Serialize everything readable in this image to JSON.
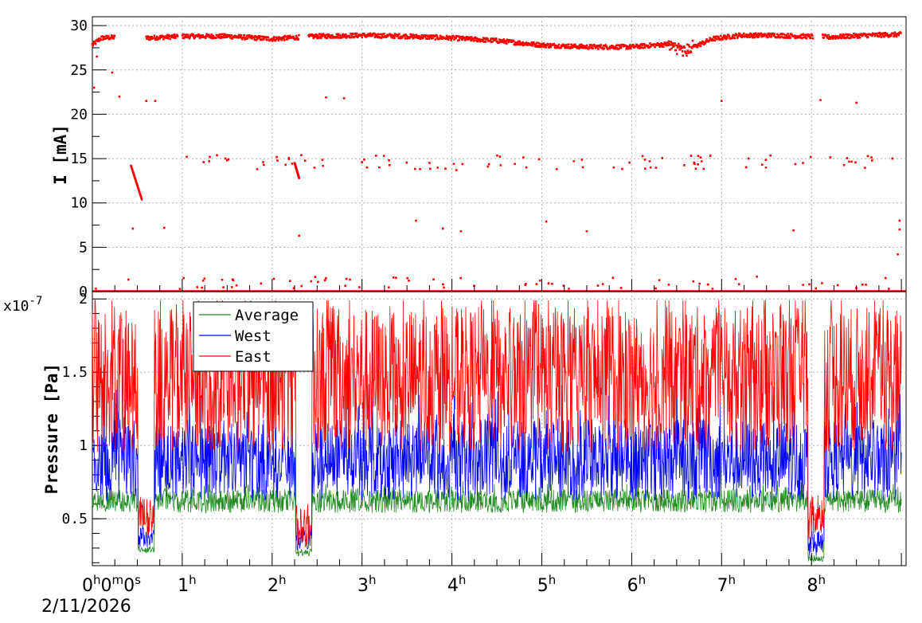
{
  "chart_data": [
    {
      "type": "scatter",
      "ylabel": "I [mA]",
      "ylim": [
        0,
        31
      ],
      "yticks": [
        "0",
        "5",
        "10",
        "15",
        "20",
        "25",
        "30"
      ],
      "xlim_hours": [
        0,
        9
      ],
      "color": "#ff0000",
      "series": [
        {
          "baseline_current_mA": [
            [
              0.0,
              27.8
            ],
            [
              0.1,
              28.6
            ],
            [
              0.3,
              28.7
            ],
            [
              0.6,
              28.6
            ],
            [
              1.0,
              28.8
            ],
            [
              1.5,
              28.8
            ],
            [
              2.0,
              28.5
            ],
            [
              2.5,
              28.8
            ],
            [
              3.0,
              28.9
            ],
            [
              3.5,
              28.8
            ],
            [
              4.0,
              28.6
            ],
            [
              4.5,
              28.3
            ],
            [
              5.0,
              27.8
            ],
            [
              5.5,
              27.6
            ],
            [
              6.0,
              27.6
            ],
            [
              6.4,
              27.9
            ],
            [
              6.6,
              27.2
            ],
            [
              6.9,
              28.5
            ],
            [
              7.2,
              28.9
            ],
            [
              7.6,
              28.9
            ],
            [
              7.9,
              28.8
            ],
            [
              8.2,
              28.7
            ],
            [
              8.6,
              28.9
            ],
            [
              9.0,
              29.0
            ]
          ],
          "scattered_points_mA": [
            [
              0.02,
              23
            ],
            [
              0.05,
              26.5
            ],
            [
              0.22,
              24.7
            ],
            [
              0.3,
              22.0
            ],
            [
              0.6,
              21.5
            ],
            [
              0.7,
              21.5
            ],
            [
              1.05,
              15.2
            ],
            [
              1.3,
              14.7
            ],
            [
              1.5,
              14.8
            ],
            [
              1.9,
              14.6
            ],
            [
              2.15,
              14.3
            ],
            [
              2.2,
              1.2
            ],
            [
              2.3,
              6.3
            ],
            [
              2.6,
              21.9
            ],
            [
              2.8,
              21.8
            ],
            [
              3.3,
              14.8
            ],
            [
              3.6,
              8.0
            ],
            [
              4.05,
              13.7
            ],
            [
              4.4,
              14.1
            ],
            [
              4.7,
              14.4
            ],
            [
              5.05,
              7.9
            ],
            [
              5.5,
              6.8
            ],
            [
              5.8,
              14.0
            ],
            [
              6.2,
              14.7
            ],
            [
              6.7,
              14.4
            ],
            [
              7.0,
              21.5
            ],
            [
              7.3,
              15.0
            ],
            [
              7.8,
              6.9
            ],
            [
              8.1,
              21.6
            ],
            [
              8.5,
              21.3
            ],
            [
              8.9,
              15.0
            ],
            [
              8.98,
              8.0
            ],
            [
              8.98,
              7.0
            ],
            [
              8.96,
              4.2
            ],
            [
              0.45,
              7.1
            ],
            [
              0.8,
              7.2
            ],
            [
              3.9,
              7.1
            ],
            [
              4.1,
              6.8
            ]
          ],
          "decay_segments_mA": [
            [
              [
                0.43,
                14.2
              ],
              [
                0.55,
                10.4
              ]
            ],
            [
              [
                2.25,
                14.5
              ],
              [
                2.3,
                12.8
              ]
            ]
          ],
          "beam_off_intervals_h": [
            [
              0.25,
              0.6
            ],
            [
              0.95,
              1.0
            ],
            [
              2.3,
              2.4
            ],
            [
              8.02,
              8.12
            ]
          ]
        }
      ]
    },
    {
      "type": "line",
      "ylabel": "Pressure [Pa]",
      "yexp": "x10",
      "yexp_power": "-7",
      "ylim": [
        0.18,
        2.05
      ],
      "yticks": [
        "0.5",
        "1",
        "1.5",
        "2"
      ],
      "xlim_hours": [
        0,
        9
      ],
      "legend_position": "top-left",
      "series": [
        {
          "name": "Average",
          "color": "#228b22",
          "base": 0.62,
          "amplitude": 0.08,
          "dips": [
            [
              0.6,
              0.28
            ],
            [
              2.35,
              0.26
            ],
            [
              8.05,
              0.22
            ]
          ]
        },
        {
          "name": "West",
          "color": "#0000ff",
          "base": 0.9,
          "amplitude": 0.28,
          "dips": [
            [
              0.6,
              0.35
            ],
            [
              2.35,
              0.33
            ],
            [
              8.05,
              0.3
            ]
          ]
        },
        {
          "name": "East",
          "color": "#ff0000",
          "base": 1.45,
          "amplitude": 0.5,
          "dips": [
            [
              0.6,
              0.45
            ],
            [
              2.35,
              0.4
            ],
            [
              8.05,
              0.45
            ]
          ]
        }
      ]
    }
  ],
  "x_axis": {
    "tick_labels": [
      {
        "hour": 0,
        "h": "0",
        "m": "0",
        "s": "0"
      },
      {
        "hour": 1,
        "h": "1"
      },
      {
        "hour": 2,
        "h": "2"
      },
      {
        "hour": 3,
        "h": "3"
      },
      {
        "hour": 4,
        "h": "4"
      },
      {
        "hour": 5,
        "h": "5"
      },
      {
        "hour": 6,
        "h": "6"
      },
      {
        "hour": 7,
        "h": "7"
      },
      {
        "hour": 8,
        "h": "8"
      }
    ],
    "superscript_h": "h",
    "superscript_m": "m",
    "superscript_s": "s",
    "date": "2/11/2026"
  }
}
